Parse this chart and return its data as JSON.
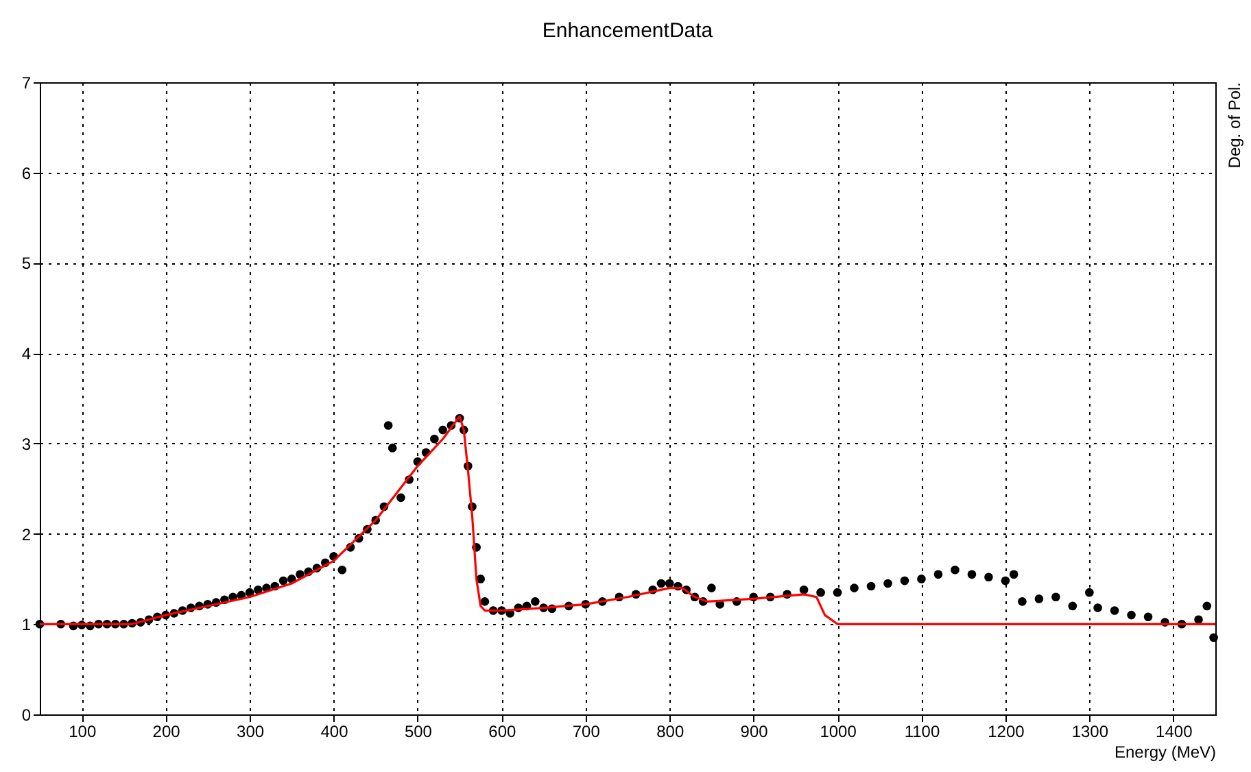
{
  "chart_data": {
    "type": "scatter",
    "title": "EnhancementData",
    "xlabel": "Energy (MeV)",
    "annotations": [
      "Deg. of Pol."
    ],
    "xlim": [
      50,
      1450
    ],
    "ylim": [
      0,
      7
    ],
    "xticks": [
      100,
      200,
      300,
      400,
      500,
      600,
      700,
      800,
      900,
      1000,
      1100,
      1200,
      1300,
      1400
    ],
    "yticks": [
      0,
      1,
      2,
      3,
      4,
      5,
      6,
      7
    ],
    "grid": true,
    "series": [
      {
        "type": "scatter",
        "marker": "circle",
        "color": "#000000",
        "x": [
          50,
          75,
          90,
          100,
          110,
          120,
          130,
          140,
          150,
          160,
          170,
          180,
          190,
          200,
          210,
          220,
          230,
          240,
          250,
          260,
          270,
          280,
          290,
          300,
          310,
          320,
          330,
          340,
          350,
          360,
          370,
          380,
          390,
          400,
          410,
          420,
          430,
          440,
          450,
          460,
          465,
          470,
          480,
          490,
          500,
          510,
          520,
          530,
          540,
          550,
          555,
          560,
          565,
          570,
          575,
          580,
          590,
          600,
          610,
          620,
          630,
          640,
          650,
          660,
          680,
          700,
          720,
          740,
          760,
          780,
          790,
          800,
          810,
          820,
          830,
          840,
          850,
          860,
          880,
          900,
          920,
          940,
          960,
          980,
          1000,
          1020,
          1040,
          1060,
          1080,
          1100,
          1120,
          1140,
          1160,
          1180,
          1200,
          1210,
          1220,
          1240,
          1260,
          1280,
          1300,
          1310,
          1330,
          1350,
          1370,
          1390,
          1410,
          1430,
          1440,
          1448
        ],
        "values": [
          1.0,
          1.0,
          0.98,
          0.99,
          0.98,
          1.0,
          1.0,
          1.0,
          1.0,
          1.01,
          1.02,
          1.05,
          1.08,
          1.1,
          1.12,
          1.15,
          1.18,
          1.2,
          1.22,
          1.24,
          1.27,
          1.3,
          1.32,
          1.35,
          1.38,
          1.4,
          1.42,
          1.48,
          1.5,
          1.55,
          1.58,
          1.62,
          1.68,
          1.75,
          1.6,
          1.85,
          1.95,
          2.05,
          2.15,
          2.3,
          3.2,
          2.95,
          2.4,
          2.6,
          2.8,
          2.9,
          3.05,
          3.15,
          3.2,
          3.28,
          3.15,
          2.75,
          2.3,
          1.85,
          1.5,
          1.25,
          1.15,
          1.15,
          1.12,
          1.18,
          1.2,
          1.25,
          1.18,
          1.17,
          1.2,
          1.22,
          1.25,
          1.3,
          1.33,
          1.38,
          1.45,
          1.45,
          1.42,
          1.38,
          1.3,
          1.25,
          1.4,
          1.22,
          1.25,
          1.3,
          1.3,
          1.33,
          1.38,
          1.35,
          1.35,
          1.4,
          1.42,
          1.45,
          1.48,
          1.5,
          1.55,
          1.6,
          1.55,
          1.52,
          1.48,
          1.55,
          1.25,
          1.28,
          1.3,
          1.2,
          1.35,
          1.18,
          1.15,
          1.1,
          1.08,
          1.02,
          1.0,
          1.05,
          1.2,
          0.85
        ]
      },
      {
        "type": "line",
        "color": "#ff0000",
        "x": [
          50,
          160,
          200,
          250,
          300,
          350,
          400,
          450,
          500,
          530,
          550,
          555,
          560,
          565,
          570,
          575,
          580,
          600,
          650,
          700,
          750,
          800,
          815,
          830,
          845,
          900,
          960,
          975,
          985,
          1000,
          1450
        ],
        "values": [
          1.0,
          1.0,
          1.1,
          1.2,
          1.3,
          1.45,
          1.7,
          2.15,
          2.75,
          3.05,
          3.3,
          3.15,
          2.7,
          2.2,
          1.5,
          1.2,
          1.15,
          1.15,
          1.18,
          1.22,
          1.3,
          1.4,
          1.4,
          1.3,
          1.25,
          1.28,
          1.33,
          1.3,
          1.1,
          1.0,
          1.0
        ]
      }
    ]
  }
}
